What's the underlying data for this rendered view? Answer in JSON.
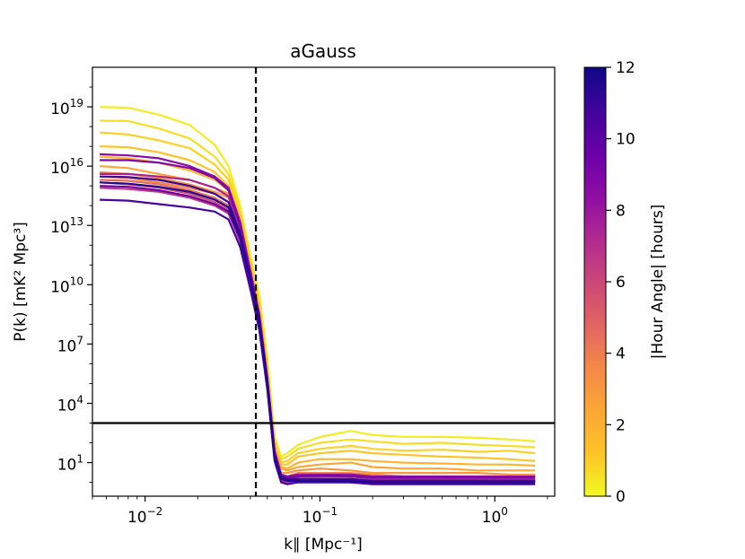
{
  "chart_data": {
    "type": "line",
    "title": "aGauss",
    "xlabel": "k∥ [Mpc⁻¹]",
    "ylabel": "P(k) [mK² Mpc³]",
    "x_scale": "log",
    "y_scale": "log",
    "xlim": [
      0.005,
      2.2
    ],
    "ylim": [
      0.2,
      1e+21
    ],
    "x_ticks": [
      {
        "value": 0.01,
        "base": "10",
        "exp": "−2"
      },
      {
        "value": 0.1,
        "base": "10",
        "exp": "−1"
      },
      {
        "value": 1,
        "base": "10",
        "exp": "0"
      }
    ],
    "y_ticks": [
      {
        "value": 10,
        "base": "10",
        "exp": "1"
      },
      {
        "value": 10000,
        "base": "10",
        "exp": "4"
      },
      {
        "value": 10000000.0,
        "base": "10",
        "exp": "7"
      },
      {
        "value": 10000000000.0,
        "base": "10",
        "exp": "10"
      },
      {
        "value": 10000000000000.0,
        "base": "10",
        "exp": "13"
      },
      {
        "value": 1e+16,
        "base": "10",
        "exp": "16"
      },
      {
        "value": 1e+19,
        "base": "10",
        "exp": "19"
      }
    ],
    "reference_lines": [
      {
        "orientation": "vertical",
        "value": 0.043,
        "style": "dashed",
        "color": "#000000"
      },
      {
        "orientation": "horizontal",
        "value": 1000,
        "style": "solid",
        "color": "#000000"
      }
    ],
    "colorbar": {
      "label": "|Hour Angle| [hours]",
      "colormap": "plasma_r",
      "range": [
        0,
        12
      ],
      "ticks": [
        "0",
        "2",
        "4",
        "6",
        "8",
        "10",
        "12"
      ]
    },
    "x": [
      0.0055,
      0.008,
      0.012,
      0.018,
      0.025,
      0.03,
      0.035,
      0.04,
      0.045,
      0.05,
      0.055,
      0.06,
      0.065,
      0.075,
      0.1,
      0.15,
      0.2,
      0.3,
      0.5,
      0.8,
      1.2,
      1.7
    ],
    "series": [
      {
        "hour_angle": 0.3,
        "values": [
          1e+19,
          9e+18,
          4e+18,
          1.2e+18,
          1.2e+17,
          1e+16,
          100000000000000.0,
          300000000000.0,
          3000000000.0,
          2000000.0,
          200,
          20,
          30,
          80,
          200,
          400,
          250,
          200,
          200,
          180,
          150,
          120
        ]
      },
      {
        "hour_angle": 0.6,
        "values": [
          2e+18,
          1.9e+18,
          8e+17,
          2.5e+17,
          3e+16,
          4000000000000000.0,
          60000000000000.0,
          200000000000.0,
          1500000000.0,
          800000.0,
          150,
          15,
          20,
          50,
          100,
          150,
          120,
          90,
          100,
          80,
          70,
          60
        ]
      },
      {
        "hour_angle": 0.9,
        "values": [
          5e+17,
          4e+17,
          2e+17,
          8e+16,
          1.2e+16,
          2000000000000000.0,
          40000000000000.0,
          150000000000.0,
          1000000000.0,
          600000.0,
          100,
          10,
          12,
          30,
          50,
          70,
          50,
          40,
          45,
          35,
          40,
          30
        ]
      },
      {
        "hour_angle": 1.2,
        "values": [
          1e+17,
          9e+16,
          5e+16,
          2e+16,
          5000000000000000.0,
          1000000000000000.0,
          25000000000000.0,
          100000000000.0,
          700000000.0,
          400000.0,
          80,
          8,
          8,
          20,
          30,
          40,
          30,
          25,
          20,
          18,
          15,
          12
        ]
      },
      {
        "hour_angle": 1.8,
        "values": [
          3e+16,
          2.5e+16,
          1.5e+16,
          6000000000000000.0,
          2000000000000000.0,
          600000000000000.0,
          15000000000000.0,
          70000000000.0,
          500000000.0,
          300000.0,
          60,
          6,
          5,
          10,
          15,
          15,
          12,
          10,
          9,
          8,
          8,
          7
        ]
      },
      {
        "hour_angle": 2.4,
        "values": [
          1e+16,
          8000000000000000.0,
          4000000000000000.0,
          2000000000000000.0,
          800000000000000.0,
          400000000000000.0,
          9000000000000.0,
          50000000000.0,
          400000000.0,
          200000.0,
          50,
          5,
          4,
          6,
          8,
          10,
          6,
          5,
          5,
          4,
          4,
          4
        ]
      },
      {
        "hour_angle": 3.0,
        "values": [
          5000000000000000.0,
          4000000000000000.0,
          2500000000000000.0,
          1200000000000000.0,
          500000000000000.0,
          250000000000000.0,
          7000000000000.0,
          40000000000.0,
          300000000.0,
          150000.0,
          40,
          3,
          3,
          4,
          5,
          4,
          3,
          3,
          3,
          3,
          2.5,
          2.5
        ]
      },
      {
        "hour_angle": 3.6,
        "values": [
          3000000000000000.0,
          2500000000000000.0,
          1500000000000000.0,
          800000000000000.0,
          400000000000000.0,
          150000000000000.0,
          5000000000000.0,
          30000000000.0,
          250000000.0,
          120000.0,
          30,
          2.5,
          2,
          3,
          3,
          3,
          2.5,
          2,
          2,
          2,
          2,
          2
        ]
      },
      {
        "hour_angle": 4.5,
        "values": [
          2000000000000000.0,
          1800000000000000.0,
          1200000000000000.0,
          600000000000000.0,
          250000000000000.0,
          100000000000000.0,
          3000000000000.0,
          20000000000.0,
          150000000.0,
          100000.0,
          25,
          2,
          1.5,
          2,
          2,
          2,
          1.5,
          1.5,
          1.5,
          1.5,
          1.5,
          1.5
        ]
      },
      {
        "hour_angle": 5.5,
        "values": [
          1500000000000000.0,
          1200000000000000.0,
          800000000000000.0,
          400000000000000.0,
          150000000000000.0,
          60000000000000.0,
          2000000000000.0,
          15000000000.0,
          100000000.0,
          80000.0,
          20,
          1.5,
          1.2,
          1.5,
          1.5,
          1.5,
          1.2,
          1.2,
          1.2,
          1.2,
          1.2,
          1.2
        ]
      },
      {
        "hour_angle": 6.5,
        "values": [
          800000000000000.0,
          700000000000000.0,
          500000000000000.0,
          250000000000000.0,
          100000000000000.0,
          40000000000000.0,
          1500000000000.0,
          10000000000.0,
          80000000.0,
          60000.0,
          15,
          1.2,
          1,
          1.2,
          1.2,
          1.2,
          1,
          1,
          1,
          1,
          1,
          1
        ]
      },
      {
        "hour_angle": 7.5,
        "values": [
          4000000000000000.0,
          4000000000000000.0,
          3000000000000000.0,
          2000000000000000.0,
          800000000000000.0,
          300000000000000.0,
          8000000000000.0,
          50000000000.0,
          300000000.0,
          150000.0,
          30,
          2,
          1.5,
          2,
          2,
          2,
          1.5,
          1.5,
          1.5,
          1.5,
          1.5,
          1.5
        ]
      },
      {
        "hour_angle": 8.5,
        "values": [
          4e+16,
          3.5e+16,
          2.5e+16,
          1e+16,
          3000000000000000.0,
          800000000000000.0,
          15000000000000.0,
          50000000000.0,
          300000000.0,
          200000.0,
          40,
          2.5,
          2,
          2.5,
          2.5,
          2.5,
          2,
          2,
          2,
          2,
          2,
          2
        ]
      },
      {
        "hour_angle": 9.0,
        "values": [
          2e+16,
          2e+16,
          1.5e+16,
          8000000000000000.0,
          2500000000000000.0,
          600000000000000.0,
          10000000000000.0,
          40000000000.0,
          250000000.0,
          150000.0,
          35,
          2,
          1.8,
          2,
          2.2,
          2,
          1.8,
          1.8,
          1.8,
          1.8,
          1.8,
          1.8
        ]
      },
      {
        "hour_angle": 9.5,
        "values": [
          1000000000000000.0,
          900000000000000.0,
          600000000000000.0,
          300000000000000.0,
          120000000000000.0,
          50000000000000.0,
          2000000000000.0,
          12000000000.0,
          90000000.0,
          70000.0,
          18,
          1.5,
          1.2,
          1.5,
          1.5,
          1.3,
          1.2,
          1.2,
          1.2,
          1.2,
          1.2,
          1.2
        ]
      },
      {
        "hour_angle": 10.5,
        "values": [
          200000000000000.0,
          180000000000000.0,
          120000000000000.0,
          80000000000000.0,
          50000000000000.0,
          20000000000000.0,
          800000000000.0,
          6000000000.0,
          50000000.0,
          50000.0,
          12,
          1,
          0.8,
          1,
          1,
          1,
          0.8,
          0.8,
          0.8,
          0.8,
          0.8,
          0.8
        ]
      },
      {
        "hour_angle": 11.0,
        "values": [
          3000000000000000.0,
          2800000000000000.0,
          2000000000000000.0,
          1000000000000000.0,
          400000000000000.0,
          150000000000000.0,
          4000000000000.0,
          25000000000.0,
          200000000.0,
          120000.0,
          25,
          2,
          1.5,
          1.5,
          1.5,
          1.5,
          1.2,
          1.2,
          1.2,
          1.2,
          1.2,
          1.2
        ]
      },
      {
        "hour_angle": 11.5,
        "values": [
          1500000000000000.0,
          1300000000000000.0,
          900000000000000.0,
          500000000000000.0,
          200000000000000.0,
          80000000000000.0,
          2500000000000.0,
          18000000000.0,
          150000000.0,
          100000.0,
          20,
          1.5,
          1.2,
          1.2,
          1.2,
          1.2,
          1,
          1,
          1,
          1,
          1,
          1
        ]
      }
    ]
  }
}
